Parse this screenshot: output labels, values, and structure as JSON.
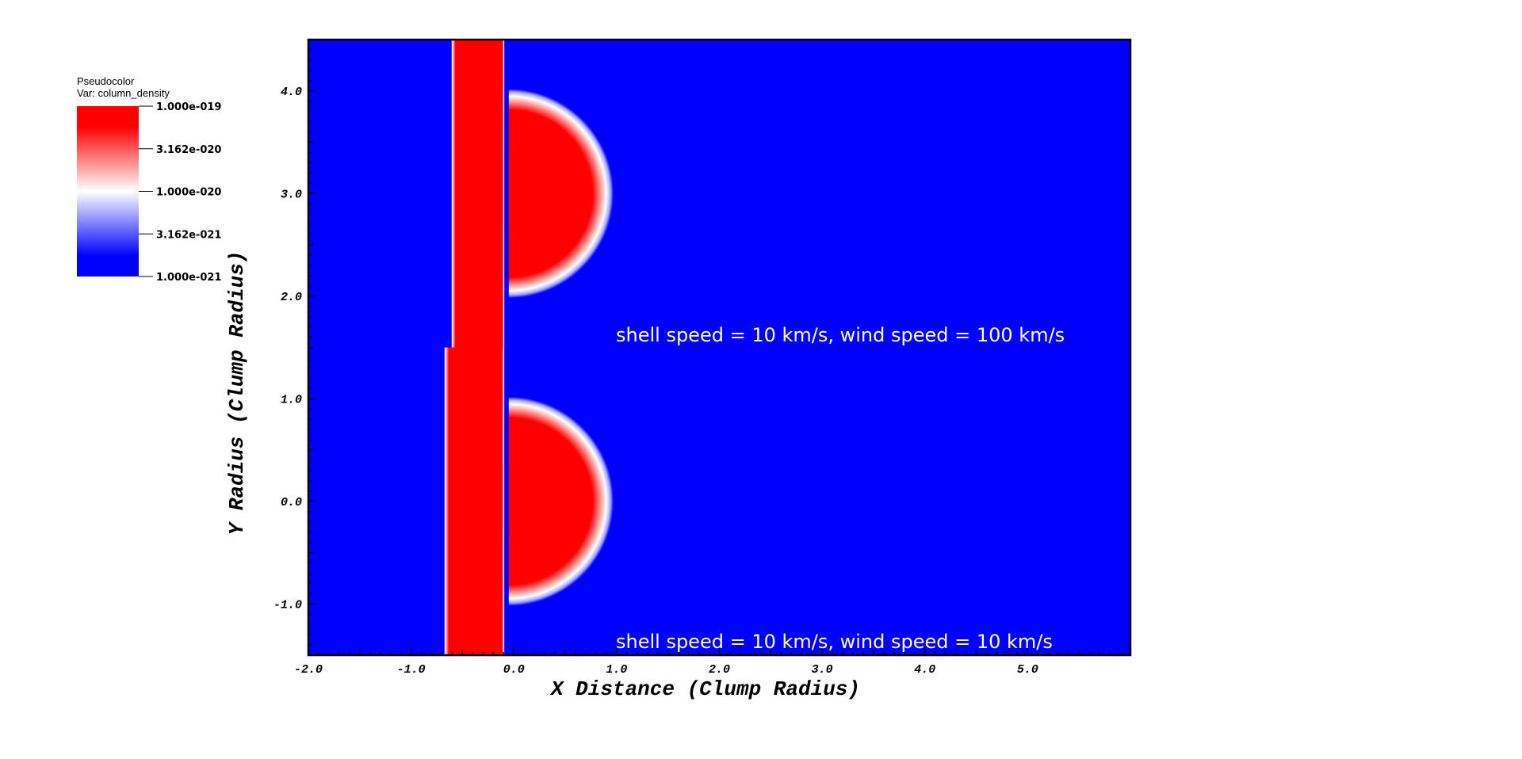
{
  "chart_data": {
    "type": "heatmap",
    "legend": {
      "title": "Pseudocolor",
      "variable": "Var: column_density",
      "ticks": [
        "1.000e-019",
        "3.162e-020",
        "1.000e-020",
        "3.162e-021",
        "1.000e-021"
      ],
      "colors": {
        "max": "#ff0000",
        "mid": "#ffffff",
        "min": "#0000ff"
      }
    },
    "xlabel": "X Distance (Clump Radius)",
    "ylabel": "Y Radius (Clump Radius)",
    "xlim": [
      -2.0,
      6.0
    ],
    "ylim": [
      -1.5,
      4.5
    ],
    "x_ticks": [
      "-2.0",
      "-1.0",
      "0.0",
      "1.0",
      "2.0",
      "3.0",
      "4.0",
      "5.0"
    ],
    "y_ticks": [
      "-1.0",
      "0.0",
      "1.0",
      "2.0",
      "3.0",
      "4.0"
    ],
    "background_color": "#0000ff",
    "feature_color": "#ff0000",
    "features": [
      {
        "shape": "slab",
        "x0": -0.61,
        "x1": -0.09,
        "y0": 1.5,
        "y1": 4.5
      },
      {
        "shape": "slab",
        "x0": -0.68,
        "x1": -0.09,
        "y0": -1.5,
        "y1": 1.5
      },
      {
        "shape": "half-disk",
        "cx": -0.05,
        "cy": 3.0,
        "r": 1.02
      },
      {
        "shape": "half-disk",
        "cx": -0.05,
        "cy": 0.0,
        "r": 1.02
      }
    ],
    "annotations": [
      "shell speed = 10 km/s, wind speed = 100 km/s",
      "shell speed = 10 km/s, wind speed = 10 km/s"
    ]
  }
}
